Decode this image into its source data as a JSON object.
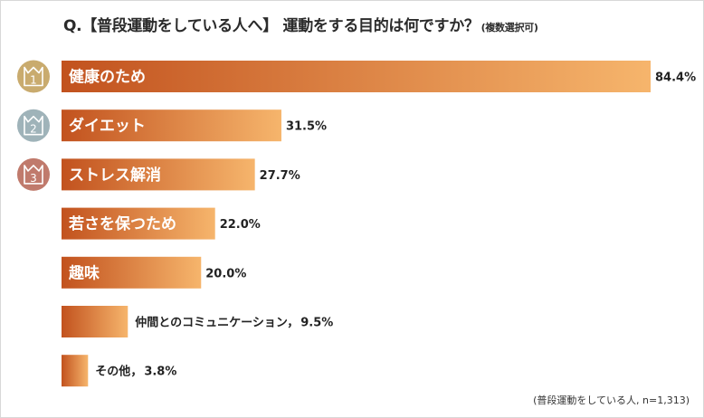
{
  "title": {
    "main": "Q.【普段運動をしている人へ】 運動をする目的は何ですか？",
    "note": "(複数選択可)"
  },
  "footnote": "(普段運動をしている人, n=1,313)",
  "colors": {
    "bar_start": "#c2521e",
    "bar_end": "#f6b56c",
    "rank1": "#c9ab6e",
    "rank2": "#9fb3b9",
    "rank3": "#c07a6c"
  },
  "chart_data": {
    "type": "bar",
    "orientation": "horizontal",
    "unit": "%",
    "xlim": [
      0,
      84.4
    ],
    "grid": false,
    "categories": [
      "健康のため",
      "ダイエット",
      "ストレス解消",
      "若さを保つため",
      "趣味",
      "仲間とのコミュニケーション",
      "その他"
    ],
    "values": [
      84.4,
      31.5,
      27.7,
      22.0,
      20.0,
      9.5,
      3.8
    ],
    "value_labels": [
      "84.4%",
      "31.5%",
      "27.7%",
      "22.0%",
      "20.0%",
      "9.5%",
      "3.8%"
    ],
    "label_inside": [
      true,
      true,
      true,
      true,
      true,
      false,
      false
    ],
    "separator_outside": "，",
    "ranks": [
      {
        "label": "1",
        "icon": "crown-rank-1-icon",
        "color_key": "rank1"
      },
      {
        "label": "2",
        "icon": "crown-rank-2-icon",
        "color_key": "rank2"
      },
      {
        "label": "3",
        "icon": "crown-rank-3-icon",
        "color_key": "rank3"
      }
    ]
  }
}
